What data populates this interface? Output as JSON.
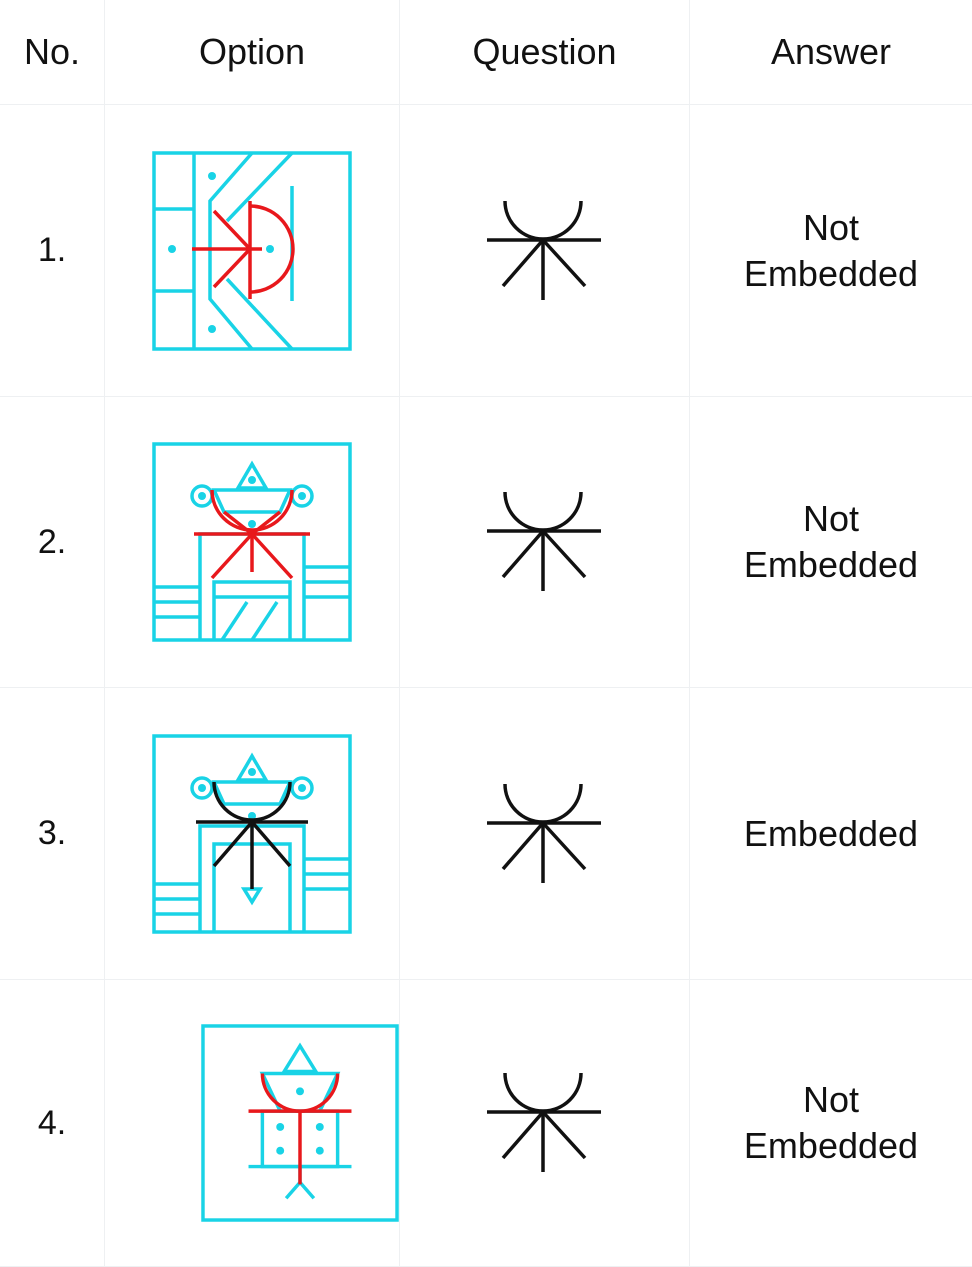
{
  "table": {
    "header": [
      "No.",
      "Option",
      "Question",
      "Answer"
    ],
    "rows": [
      [
        "1.",
        "Not Embedded"
      ],
      [
        "2.",
        "Not Embedded"
      ],
      [
        "3.",
        "Embedded"
      ],
      [
        "4.",
        "Not Embedded"
      ]
    ]
  }
}
